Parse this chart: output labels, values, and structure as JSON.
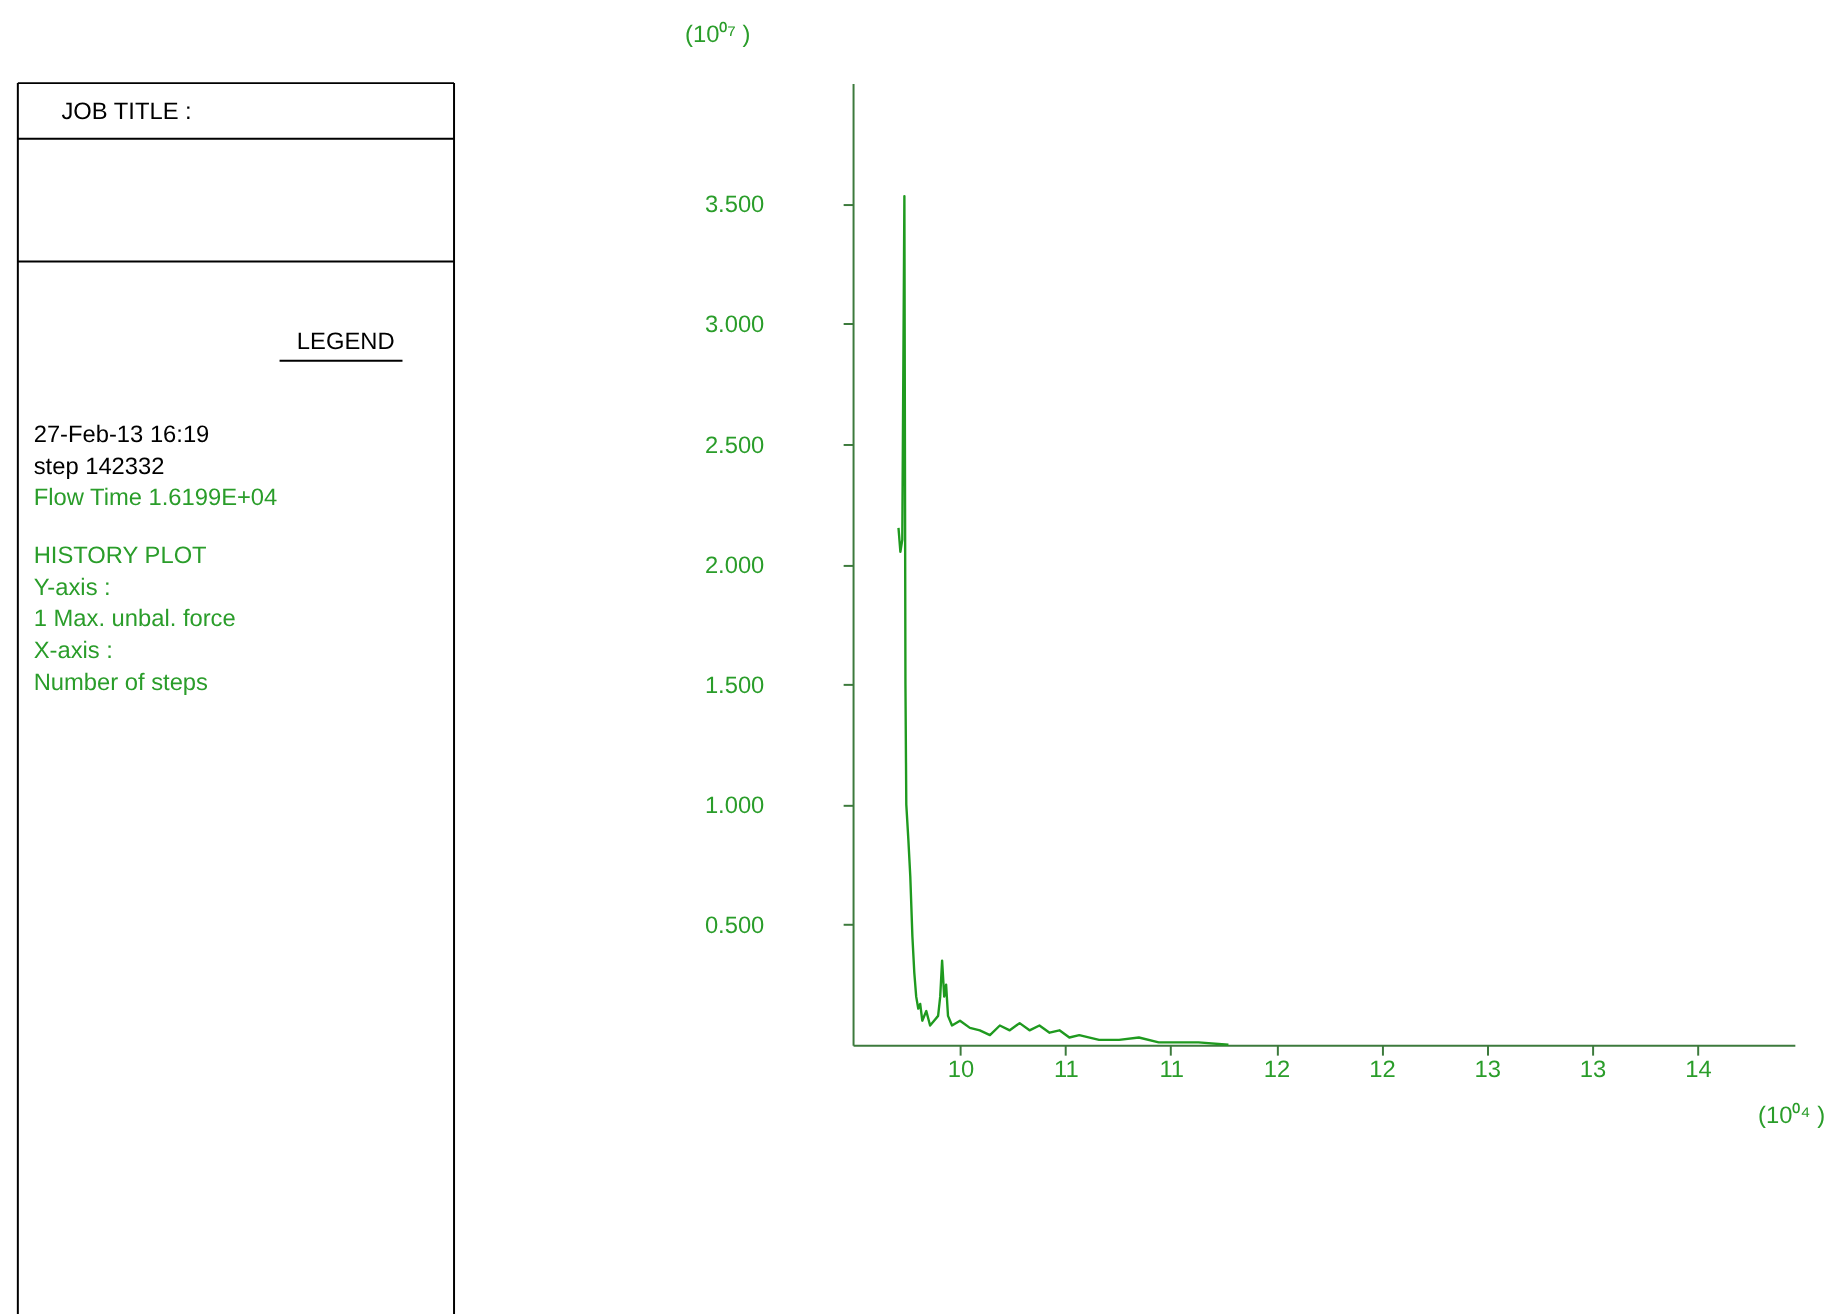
{
  "chart_data": {
    "type": "line",
    "title": "JOB TITLE :",
    "annotations": [
      "LEGEND",
      "27-Feb-13  16:19",
      " step   142332",
      "Flow Time     1.6199E+04",
      "HISTORY PLOT",
      "  Y-axis :",
      "  1 Max. unbal. force",
      "  X-axis :",
      "Number of steps"
    ],
    "xlabel": "(10⁰⁴ )",
    "ylabel": "(10⁰⁷ )",
    "x": [
      9.708,
      9.717,
      9.726,
      9.736,
      9.741,
      9.745,
      9.755,
      9.764,
      9.774,
      9.783,
      9.792,
      9.802,
      9.811,
      9.821,
      9.84,
      9.858,
      9.877,
      9.896,
      9.906,
      9.915,
      9.925,
      9.934,
      9.943,
      9.962,
      10.0,
      10.047,
      10.094,
      10.142,
      10.189,
      10.236,
      10.283,
      10.33,
      10.377,
      10.425,
      10.472,
      10.519,
      10.566,
      10.66,
      10.755,
      10.849,
      10.943,
      11.038,
      11.132,
      11.274
    ],
    "series": [
      {
        "color": "#1f9a1f",
        "values": [
          2.15,
          2.05,
          2.1,
          3.53,
          1.5,
          1.0,
          0.85,
          0.7,
          0.45,
          0.3,
          0.2,
          0.15,
          0.17,
          0.1,
          0.14,
          0.08,
          0.1,
          0.12,
          0.2,
          0.35,
          0.2,
          0.25,
          0.12,
          0.08,
          0.1,
          0.07,
          0.06,
          0.04,
          0.08,
          0.06,
          0.09,
          0.06,
          0.08,
          0.05,
          0.06,
          0.03,
          0.04,
          0.02,
          0.02,
          0.03,
          0.01,
          0.01,
          0.01,
          0.0
        ]
      }
    ],
    "xlim": [
      9.49,
      13.96
    ],
    "ylim": [
      0,
      4.0
    ],
    "xticks": [
      {
        "value": 10,
        "label": "10"
      },
      {
        "value": 10.5,
        "label": "11"
      },
      {
        "value": 11,
        "label": "11"
      },
      {
        "value": 11.5,
        "label": "12"
      },
      {
        "value": 12,
        "label": "12"
      },
      {
        "value": 12.5,
        "label": "13"
      },
      {
        "value": 13,
        "label": "13"
      },
      {
        "value": 13.5,
        "label": "14"
      }
    ],
    "yticks": [
      {
        "value": 0.5,
        "label": "0.500"
      },
      {
        "value": 1.0,
        "label": "1.000"
      },
      {
        "value": 1.5,
        "label": "1.500"
      },
      {
        "value": 2.0,
        "label": "2.000"
      },
      {
        "value": 2.5,
        "label": "2.500"
      },
      {
        "value": 3.0,
        "label": "3.000"
      },
      {
        "value": 3.5,
        "label": "3.500"
      }
    ],
    "grid": false,
    "marker": "none",
    "line_style": "solid"
  }
}
